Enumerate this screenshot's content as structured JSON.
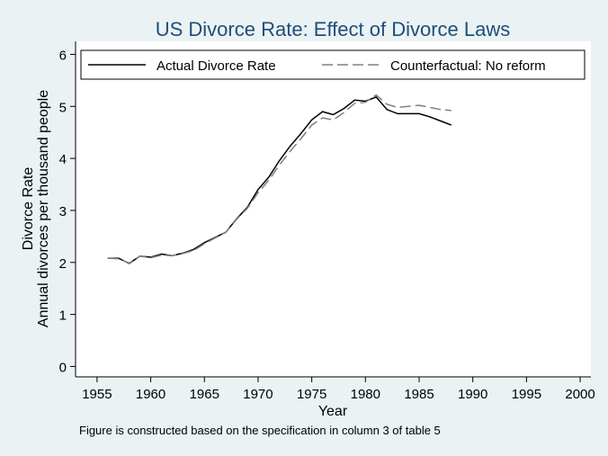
{
  "chart_data": {
    "type": "line",
    "title": "US Divorce Rate: Effect of Divorce Laws",
    "xlabel": "Year",
    "ylabel_line1": "Divorce Rate",
    "ylabel_line2": "Annual divorces per thousand people",
    "note": "Figure is constructed based on the specification in column 3 of table 5",
    "xlim": [
      1953,
      2001
    ],
    "ylim": [
      -0.2,
      6.25
    ],
    "xticks": [
      1955,
      1960,
      1965,
      1970,
      1975,
      1980,
      1985,
      1990,
      1995,
      2000
    ],
    "yticks": [
      0,
      1,
      2,
      3,
      4,
      5,
      6
    ],
    "grid": false,
    "legend_position": "top",
    "series": [
      {
        "name": "Actual Divorce Rate",
        "style": "solid",
        "color": "#000000",
        "x": [
          1956,
          1957,
          1958,
          1959,
          1960,
          1961,
          1962,
          1963,
          1964,
          1965,
          1966,
          1967,
          1968,
          1969,
          1970,
          1971,
          1972,
          1973,
          1974,
          1975,
          1976,
          1977,
          1978,
          1979,
          1980,
          1981,
          1982,
          1983,
          1984,
          1985,
          1986,
          1987,
          1988
        ],
        "y": [
          2.08,
          2.08,
          1.98,
          2.12,
          2.1,
          2.16,
          2.13,
          2.18,
          2.25,
          2.38,
          2.48,
          2.58,
          2.84,
          3.06,
          3.4,
          3.64,
          3.96,
          4.24,
          4.48,
          4.74,
          4.9,
          4.84,
          4.96,
          5.12,
          5.1,
          5.18,
          4.94,
          4.86,
          4.86,
          4.86,
          4.8,
          4.72,
          4.64
        ]
      },
      {
        "name": "Counterfactual: No reform",
        "style": "dashed",
        "color": "#808080",
        "x": [
          1956,
          1957,
          1958,
          1959,
          1960,
          1961,
          1962,
          1963,
          1964,
          1965,
          1966,
          1967,
          1968,
          1969,
          1970,
          1971,
          1972,
          1973,
          1974,
          1975,
          1976,
          1977,
          1978,
          1979,
          1980,
          1981,
          1982,
          1983,
          1984,
          1985,
          1986,
          1987,
          1988
        ],
        "y": [
          2.08,
          2.07,
          1.99,
          2.12,
          2.09,
          2.14,
          2.13,
          2.17,
          2.23,
          2.36,
          2.47,
          2.58,
          2.83,
          3.04,
          3.34,
          3.58,
          3.88,
          4.14,
          4.38,
          4.64,
          4.78,
          4.74,
          4.88,
          5.06,
          5.08,
          5.22,
          5.04,
          4.98,
          5.0,
          5.02,
          4.98,
          4.94,
          4.92
        ]
      }
    ]
  }
}
